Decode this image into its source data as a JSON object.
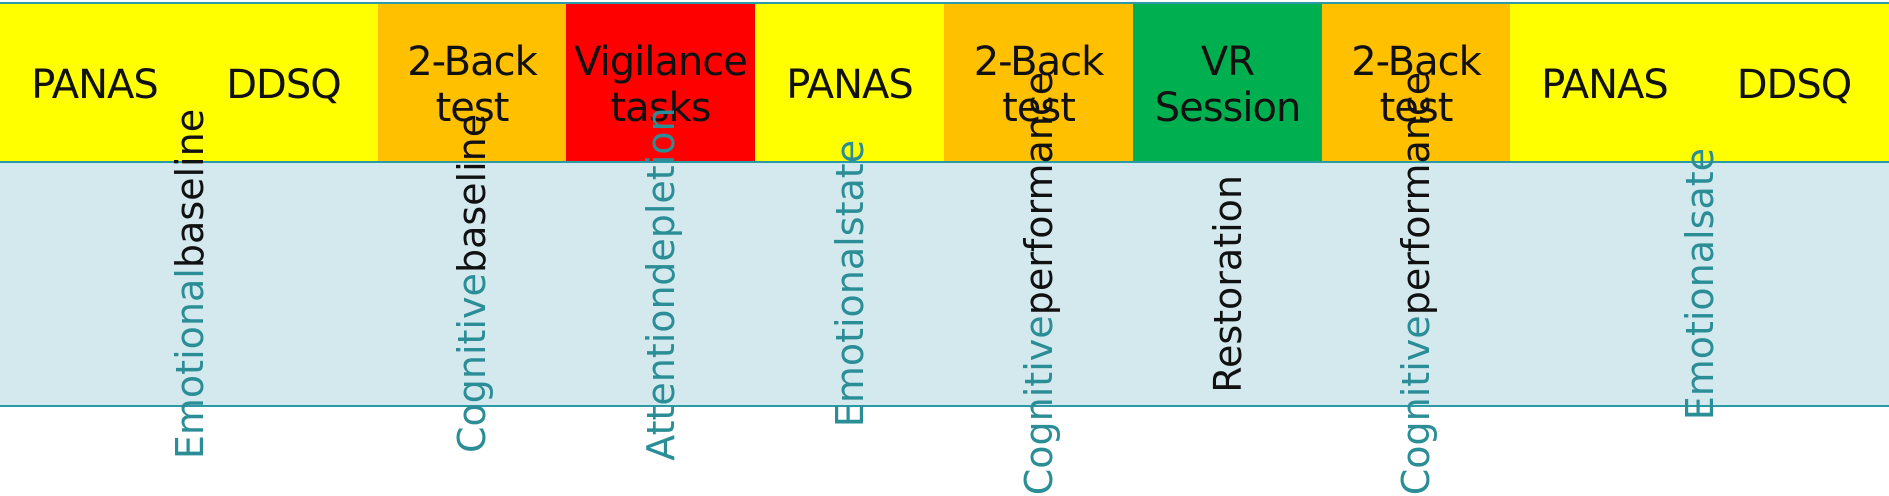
{
  "colors": {
    "yellow": "#ffff00",
    "orange": "#ffc000",
    "red": "#ff0000",
    "green": "#00b050",
    "light_blue": "#d3e9ee",
    "teal_text": "#2b8e97",
    "border": "#2a9aa6"
  },
  "steps": [
    {
      "label": "PANAS",
      "color": "#ffff00"
    },
    {
      "label": "DDSQ",
      "color": "#ffff00"
    },
    {
      "label": "2-Back\ntest",
      "color": "#ffc000"
    },
    {
      "label": "Vigilance\ntasks",
      "color": "#ff0000"
    },
    {
      "label": "PANAS",
      "color": "#ffff00"
    },
    {
      "label": "2-Back\ntest",
      "color": "#ffc000"
    },
    {
      "label": "VR\nSession",
      "color": "#00b050"
    },
    {
      "label": "2-Back\ntest",
      "color": "#ffc000"
    },
    {
      "label": "PANAS",
      "color": "#ffff00"
    },
    {
      "label": "DDSQ",
      "color": "#ffff00"
    }
  ],
  "measures": [
    {
      "line1": "Emotional",
      "line2": "baseline",
      "line1_color": "teal",
      "line2_color": "black"
    },
    {
      "line1": "Cognitive",
      "line2": "baseline",
      "line1_color": "teal",
      "line2_color": "black"
    },
    {
      "line1": "Attention",
      "line2": "depletion",
      "line1_color": "teal",
      "line2_color": "teal"
    },
    {
      "line1": "Emotional",
      "line2": "state",
      "line1_color": "teal",
      "line2_color": "teal"
    },
    {
      "line1": "Cognitive",
      "line2": "performance",
      "line1_color": "teal",
      "line2_color": "black"
    },
    {
      "line1": "Restoration",
      "line2": "",
      "line1_color": "black",
      "line2_color": "black"
    },
    {
      "line1": "Cognitive",
      "line2": "performance",
      "line1_color": "teal",
      "line2_color": "black"
    },
    {
      "line1": "Emotional",
      "line2": "sate",
      "line1_color": "teal",
      "line2_color": "teal"
    }
  ]
}
